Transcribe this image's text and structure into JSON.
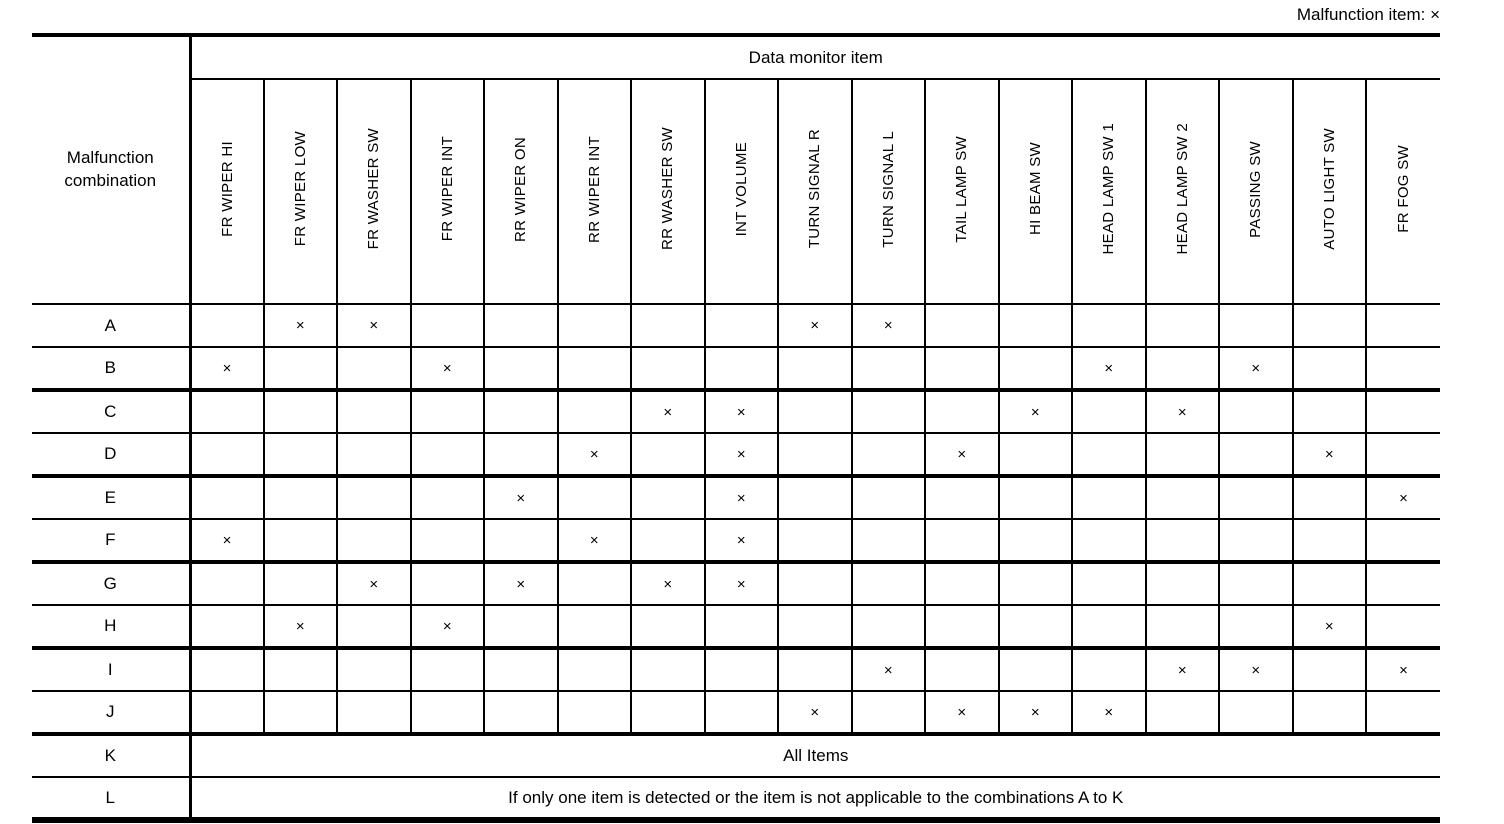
{
  "note": {
    "label": "Malfunction item: ×"
  },
  "table": {
    "corner_label": "Malfunction combination",
    "group_header": "Data monitor item",
    "mark_symbol": "×",
    "columns": [
      "FR WIPER HI",
      "FR WIPER LOW",
      "FR WASHER SW",
      "FR WIPER INT",
      "RR WIPER ON",
      "RR WIPER INT",
      "RR WASHER SW",
      "INT VOLUME",
      "TURN SIGNAL R",
      "TURN SIGNAL L",
      "TAIL LAMP SW",
      "HI BEAM SW",
      "HEAD LAMP SW 1",
      "HEAD LAMP SW 2",
      "PASSING SW",
      "AUTO LIGHT SW",
      "FR FOG SW"
    ],
    "rows": [
      {
        "label": "A",
        "type": "marks",
        "marks": [
          "FR WIPER LOW",
          "FR WASHER SW",
          "TURN SIGNAL R",
          "TURN SIGNAL L"
        ]
      },
      {
        "label": "B",
        "type": "marks",
        "marks": [
          "FR WIPER HI",
          "FR WIPER INT",
          "HEAD LAMP SW 1",
          "PASSING SW"
        ]
      },
      {
        "label": "C",
        "type": "marks",
        "marks": [
          "RR WASHER SW",
          "INT VOLUME",
          "HI BEAM SW",
          "HEAD LAMP SW 2"
        ]
      },
      {
        "label": "D",
        "type": "marks",
        "marks": [
          "RR WIPER INT",
          "INT VOLUME",
          "TAIL LAMP SW",
          "AUTO LIGHT SW"
        ]
      },
      {
        "label": "E",
        "type": "marks",
        "marks": [
          "RR WIPER ON",
          "INT VOLUME",
          "FR FOG SW"
        ]
      },
      {
        "label": "F",
        "type": "marks",
        "marks": [
          "FR WIPER HI",
          "RR WIPER INT",
          "INT VOLUME"
        ]
      },
      {
        "label": "G",
        "type": "marks",
        "marks": [
          "FR WASHER SW",
          "RR WIPER ON",
          "RR WASHER SW",
          "INT VOLUME"
        ]
      },
      {
        "label": "H",
        "type": "marks",
        "marks": [
          "FR WIPER LOW",
          "FR WIPER INT",
          "AUTO LIGHT SW"
        ]
      },
      {
        "label": "I",
        "type": "marks",
        "marks": [
          "TURN SIGNAL L",
          "HEAD LAMP SW 2",
          "PASSING SW",
          "FR FOG SW"
        ]
      },
      {
        "label": "J",
        "type": "marks",
        "marks": [
          "TURN SIGNAL R",
          "TAIL LAMP SW",
          "HI BEAM SW",
          "HEAD LAMP SW 1"
        ]
      },
      {
        "label": "K",
        "type": "span",
        "text": "All Items"
      },
      {
        "label": "L",
        "type": "span",
        "text": "If only one item is detected or the item is not applicable to the combinations A to K"
      }
    ]
  }
}
